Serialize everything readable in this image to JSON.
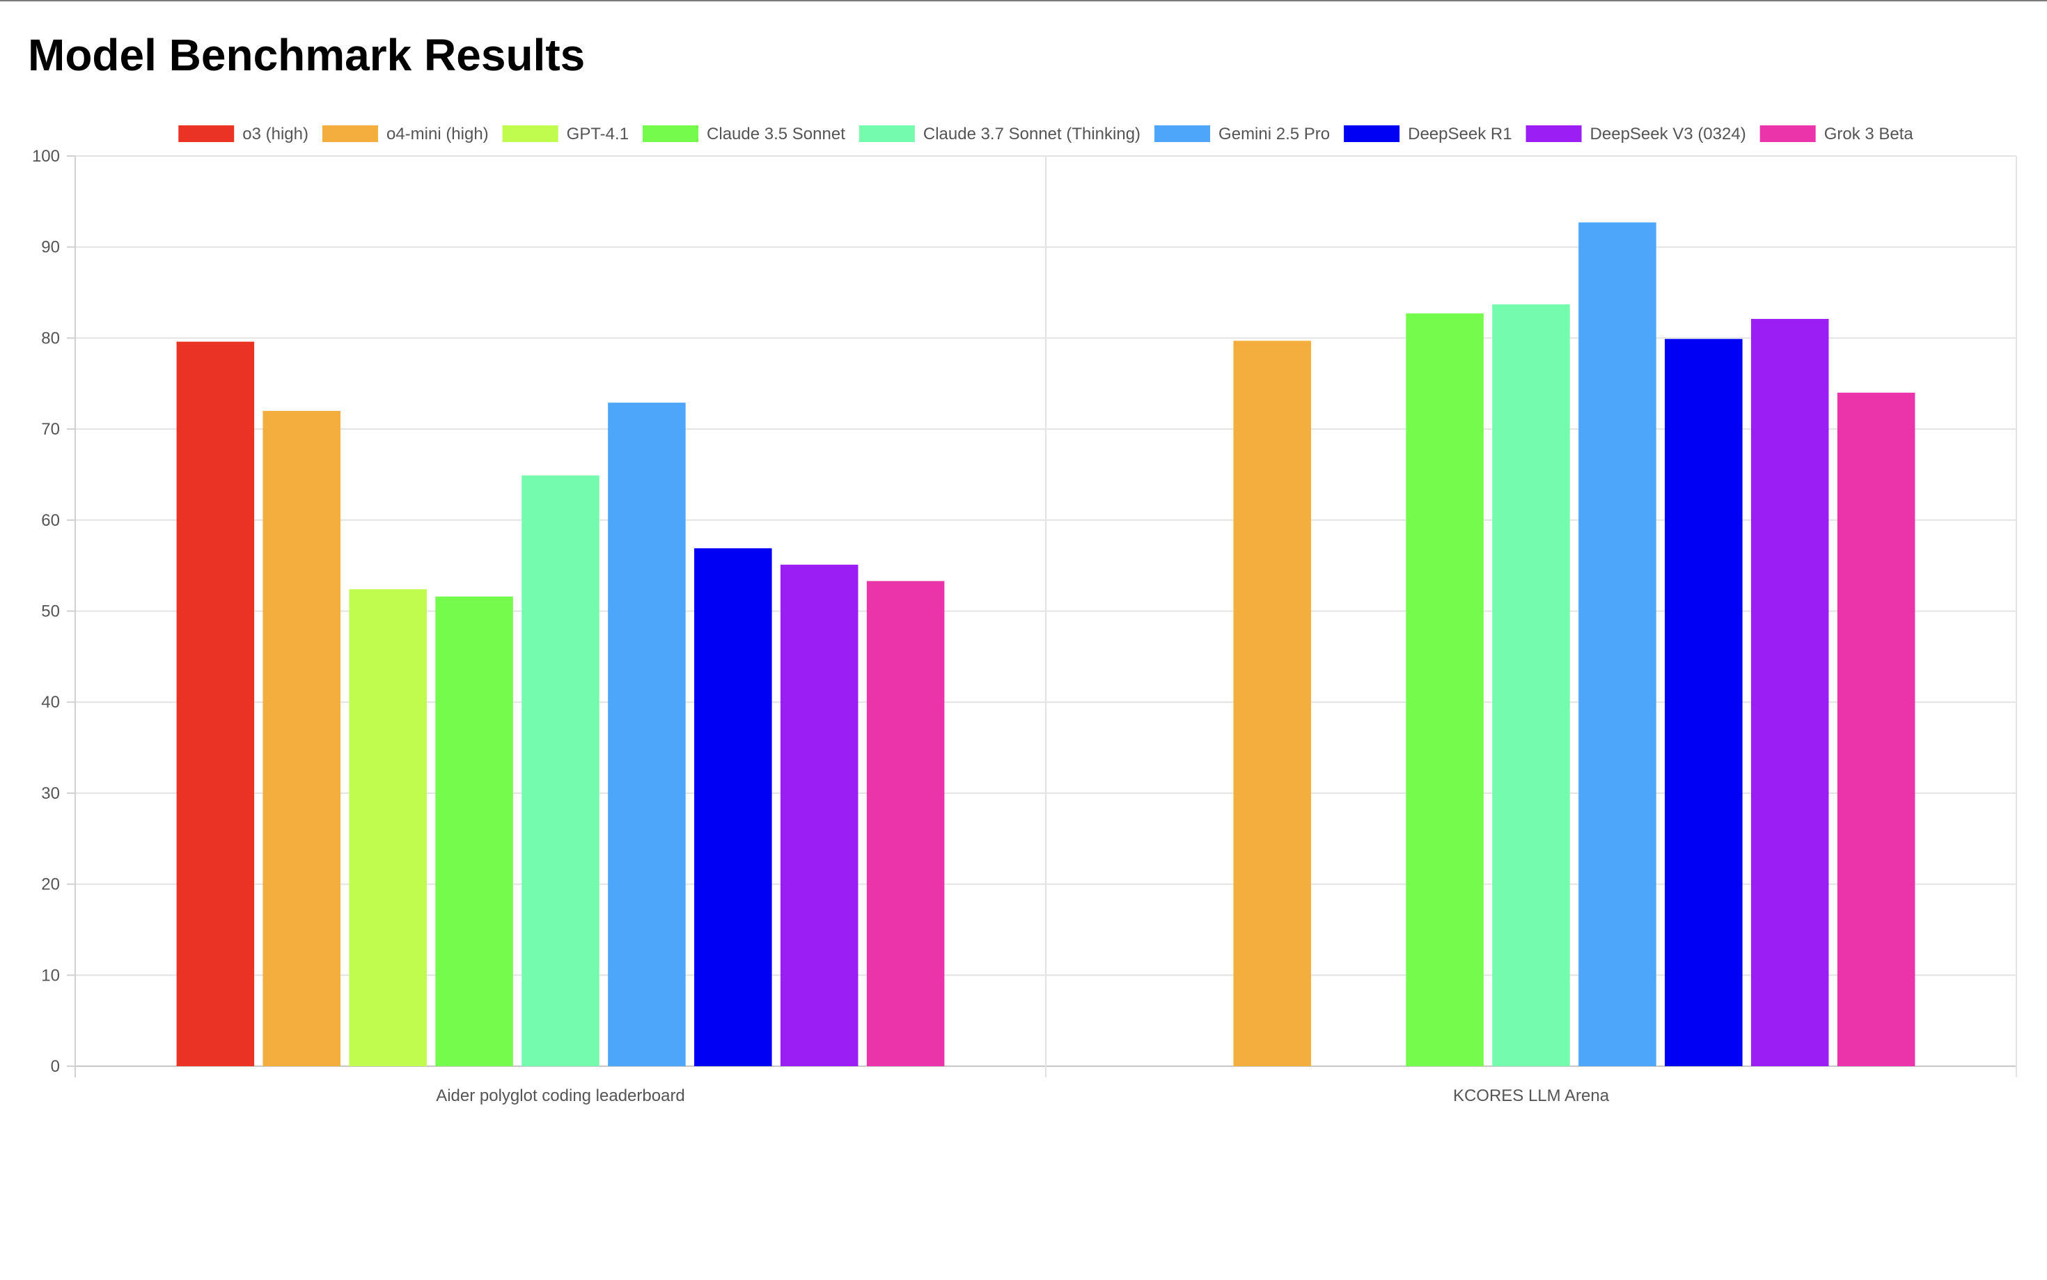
{
  "page": {
    "title": "Model Benchmark Results"
  },
  "chart_data": {
    "type": "bar",
    "title": "",
    "xlabel": "",
    "ylabel": "",
    "categories": [
      "Aider polyglot coding leaderboard",
      "KCORES LLM Arena"
    ],
    "ylim": [
      0,
      100
    ],
    "yticks": [
      0,
      10,
      20,
      30,
      40,
      50,
      60,
      70,
      80,
      90,
      100
    ],
    "grid": true,
    "legend_position": "top-center",
    "series": [
      {
        "name": "o3 (high)",
        "color": "#ea3324",
        "values": [
          79.6,
          null
        ]
      },
      {
        "name": "o4-mini (high)",
        "color": "#f3ae3d",
        "values": [
          72.0,
          79.7
        ]
      },
      {
        "name": "GPT-4.1",
        "color": "#bffc4e",
        "values": [
          52.4,
          null
        ]
      },
      {
        "name": "Claude 3.5 Sonnet",
        "color": "#75fb4c",
        "values": [
          51.6,
          82.7
        ]
      },
      {
        "name": "Claude 3.7 Sonnet (Thinking)",
        "color": "#75fbad",
        "values": [
          64.9,
          83.7
        ]
      },
      {
        "name": "Gemini 2.5 Pro",
        "color": "#4da6f9",
        "values": [
          72.9,
          92.7
        ]
      },
      {
        "name": "DeepSeek R1",
        "color": "#0000f5",
        "values": [
          56.9,
          79.9
        ]
      },
      {
        "name": "DeepSeek V3 (0324)",
        "color": "#9b1ff5",
        "values": [
          55.1,
          82.1
        ]
      },
      {
        "name": "Grok 3 Beta",
        "color": "#eb34a9",
        "values": [
          53.3,
          74.0
        ]
      }
    ]
  }
}
